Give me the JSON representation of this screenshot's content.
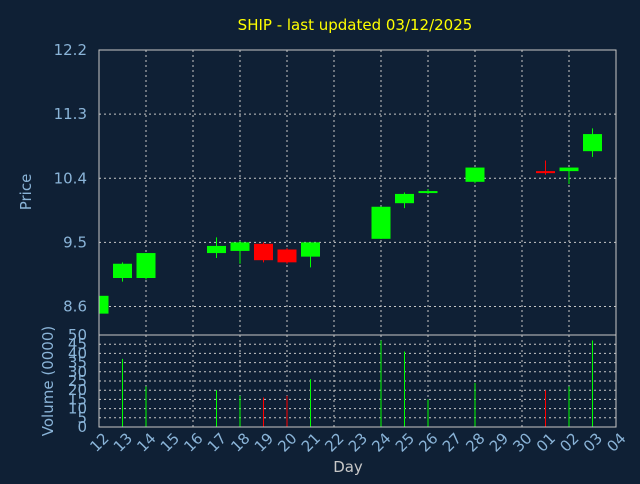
{
  "chart_data": [
    {
      "type": "candlestick",
      "title": "SHIP - last updated 03/12/2025",
      "xlabel": "",
      "ylabel": "Price",
      "ylim": [
        8.2,
        12.2
      ],
      "yticks": [
        "12.2",
        "11.3",
        "10.4",
        "9.5",
        "8.6"
      ],
      "grid": true,
      "colors": {
        "up": "#00ff00",
        "down": "#ff0000",
        "title": "#ffff00",
        "axis_text": "#8ab4d8",
        "background": "#0f2035",
        "grid": "#c8c8c8"
      },
      "x_ticks": [
        "12",
        "13",
        "14",
        "15",
        "16",
        "17",
        "18",
        "19",
        "20",
        "21",
        "22",
        "23",
        "24",
        "25",
        "26",
        "27",
        "28",
        "29",
        "30",
        "01",
        "02",
        "03",
        "04"
      ],
      "candles": [
        {
          "day": "12",
          "open": 8.5,
          "high": 8.75,
          "low": 8.45,
          "close": 8.75
        },
        {
          "day": "13",
          "open": 9.0,
          "high": 9.22,
          "low": 8.95,
          "close": 9.2
        },
        {
          "day": "14",
          "open": 9.0,
          "high": 9.35,
          "low": 8.98,
          "close": 9.35
        },
        {
          "day": "17",
          "open": 9.35,
          "high": 9.57,
          "low": 9.28,
          "close": 9.45
        },
        {
          "day": "18",
          "open": 9.38,
          "high": 9.52,
          "low": 9.2,
          "close": 9.5
        },
        {
          "day": "19",
          "open": 9.48,
          "high": 9.5,
          "low": 9.22,
          "close": 9.25
        },
        {
          "day": "20",
          "open": 9.4,
          "high": 9.42,
          "low": 9.2,
          "close": 9.22
        },
        {
          "day": "21",
          "open": 9.3,
          "high": 9.5,
          "low": 9.15,
          "close": 9.5
        },
        {
          "day": "24",
          "open": 9.55,
          "high": 10.0,
          "low": 9.55,
          "close": 10.0
        },
        {
          "day": "25",
          "open": 10.05,
          "high": 10.2,
          "low": 9.98,
          "close": 10.18
        },
        {
          "day": "26",
          "open": 10.2,
          "high": 10.25,
          "low": 10.18,
          "close": 10.22
        },
        {
          "day": "28",
          "open": 10.35,
          "high": 10.55,
          "low": 10.33,
          "close": 10.55
        },
        {
          "day": "01",
          "open": 10.5,
          "high": 10.65,
          "low": 10.45,
          "close": 10.48
        },
        {
          "day": "02",
          "open": 10.5,
          "high": 10.55,
          "low": 10.32,
          "close": 10.55
        },
        {
          "day": "03",
          "open": 10.78,
          "high": 11.1,
          "low": 10.7,
          "close": 11.02
        }
      ]
    },
    {
      "type": "bar",
      "xlabel": "Day",
      "ylabel": "Volume (0000)",
      "ylim": [
        0,
        50
      ],
      "yticks": [
        "50",
        "45",
        "40",
        "35",
        "30",
        "25",
        "20",
        "15",
        "10",
        "5",
        "0"
      ],
      "x_ticks": [
        "12",
        "13",
        "14",
        "15",
        "16",
        "17",
        "18",
        "19",
        "20",
        "21",
        "22",
        "23",
        "24",
        "25",
        "26",
        "27",
        "28",
        "29",
        "30",
        "01",
        "02",
        "03",
        "04"
      ],
      "bars": [
        {
          "day": "13",
          "value": 37,
          "dir": "up"
        },
        {
          "day": "14",
          "value": 22,
          "dir": "up"
        },
        {
          "day": "17",
          "value": 20,
          "dir": "up"
        },
        {
          "day": "18",
          "value": 17,
          "dir": "up"
        },
        {
          "day": "19",
          "value": 16,
          "dir": "down"
        },
        {
          "day": "20",
          "value": 17,
          "dir": "down"
        },
        {
          "day": "21",
          "value": 26,
          "dir": "up"
        },
        {
          "day": "24",
          "value": 47,
          "dir": "up"
        },
        {
          "day": "25",
          "value": 41,
          "dir": "up"
        },
        {
          "day": "26",
          "value": 15,
          "dir": "up"
        },
        {
          "day": "28",
          "value": 24,
          "dir": "up"
        },
        {
          "day": "01",
          "value": 20,
          "dir": "down"
        },
        {
          "day": "02",
          "value": 22,
          "dir": "up"
        },
        {
          "day": "03",
          "value": 47,
          "dir": "up"
        }
      ]
    }
  ]
}
